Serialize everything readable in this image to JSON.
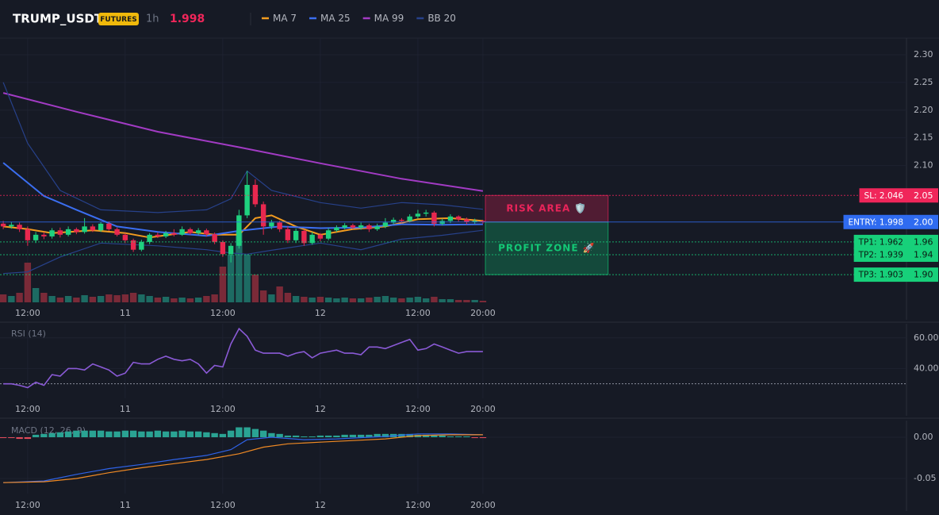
{
  "header": {
    "symbol": "TRUMP_USDT",
    "market": "FUTURES",
    "interval": "1h",
    "price": 1.998
  },
  "chart_data": [
    {
      "type": "candlestick",
      "x": [
        9,
        10,
        11,
        12,
        13,
        14,
        15,
        16,
        17,
        18,
        19,
        20,
        21,
        22,
        23,
        24,
        25,
        26,
        27,
        28,
        29,
        30,
        31,
        32,
        33,
        34,
        35,
        36,
        37,
        38,
        39,
        40,
        41,
        42,
        43,
        44,
        45,
        46,
        47,
        48,
        49,
        50,
        51,
        52,
        53,
        54,
        55,
        56,
        57,
        58,
        59,
        60,
        61,
        62,
        63,
        64,
        65,
        66,
        67,
        68
      ],
      "open": [
        1.995,
        1.99,
        1.993,
        1.985,
        1.965,
        1.975,
        1.972,
        1.983,
        1.975,
        1.985,
        1.98,
        1.99,
        1.983,
        1.995,
        1.985,
        1.975,
        1.965,
        1.948,
        1.962,
        1.975,
        1.972,
        1.978,
        1.975,
        1.985,
        1.978,
        1.983,
        1.976,
        1.962,
        1.94,
        1.955,
        2.01,
        2.065,
        2.03,
        1.99,
        1.997,
        1.985,
        1.965,
        1.982,
        1.96,
        1.975,
        1.968,
        1.983,
        1.988,
        1.992,
        1.988,
        1.992,
        1.985,
        1.99,
        1.997,
        2.002,
        2.0,
        2.008,
        2.013,
        2.015,
        1.995,
        2.0,
        2.008,
        2.003,
        1.998,
        2.0
      ],
      "high": [
        2.0,
        1.998,
        1.997,
        1.99,
        1.98,
        1.98,
        1.987,
        1.988,
        1.99,
        1.988,
        2.005,
        1.994,
        1.998,
        1.999,
        1.988,
        1.978,
        1.968,
        1.966,
        1.978,
        1.979,
        1.982,
        1.985,
        1.99,
        1.988,
        1.987,
        1.986,
        1.979,
        1.965,
        1.96,
        2.02,
        2.09,
        2.075,
        2.035,
        2.002,
        2.0,
        1.99,
        1.986,
        1.985,
        1.98,
        1.978,
        1.987,
        1.992,
        1.996,
        1.995,
        1.997,
        1.995,
        1.995,
        2.005,
        2.006,
        2.005,
        2.012,
        2.02,
        2.02,
        2.018,
        2.004,
        2.012,
        2.01,
        2.006,
        2.004,
        2.002
      ],
      "low": [
        1.985,
        1.986,
        1.98,
        1.955,
        1.96,
        1.967,
        1.968,
        1.97,
        1.972,
        1.976,
        1.977,
        1.98,
        1.98,
        1.982,
        1.972,
        1.96,
        1.944,
        1.945,
        1.958,
        1.969,
        1.969,
        1.972,
        1.973,
        1.975,
        1.975,
        1.972,
        1.958,
        1.935,
        1.925,
        1.95,
        2.005,
        2.025,
        1.975,
        1.985,
        1.98,
        1.96,
        1.96,
        1.955,
        1.957,
        1.963,
        1.965,
        1.98,
        1.985,
        1.985,
        1.984,
        1.98,
        1.982,
        1.987,
        1.994,
        1.996,
        1.997,
        2.004,
        2.008,
        1.99,
        1.992,
        1.996,
        1.999,
        1.994,
        1.995,
        1.995
      ],
      "close": [
        1.99,
        1.993,
        1.985,
        1.965,
        1.975,
        1.972,
        1.983,
        1.975,
        1.985,
        1.98,
        1.99,
        1.983,
        1.995,
        1.985,
        1.975,
        1.965,
        1.948,
        1.962,
        1.975,
        1.972,
        1.978,
        1.975,
        1.985,
        1.978,
        1.983,
        1.976,
        1.962,
        1.94,
        1.955,
        2.01,
        2.065,
        2.03,
        1.99,
        1.997,
        1.985,
        1.965,
        1.982,
        1.96,
        1.975,
        1.968,
        1.983,
        1.988,
        1.992,
        1.988,
        1.992,
        1.985,
        1.99,
        1.997,
        2.002,
        2.0,
        2.008,
        2.013,
        2.015,
        1.995,
        2.0,
        2.008,
        2.003,
        1.998,
        2.0,
        1.998
      ],
      "volume": [
        10,
        8,
        12,
        50,
        18,
        12,
        8,
        6,
        8,
        6,
        9,
        7,
        8,
        10,
        9,
        10,
        12,
        10,
        8,
        6,
        7,
        5,
        6,
        5,
        6,
        8,
        10,
        45,
        60,
        90,
        60,
        35,
        15,
        10,
        20,
        12,
        8,
        7,
        6,
        7,
        6,
        5,
        6,
        5,
        5,
        6,
        7,
        8,
        6,
        5,
        6,
        7,
        5,
        7,
        4,
        4,
        3,
        3,
        3,
        2
      ],
      "volume_lim": [
        0,
        100
      ],
      "up_color": "#1fd17f",
      "down_color": "#e8284f",
      "volume_up_color": "#1d6b63",
      "volume_down_color": "#7a2a38",
      "series": [
        {
          "name": "MA 7",
          "color": "#f39c1f",
          "x": [
            9,
            12,
            15,
            20,
            24,
            27,
            32,
            35,
            38,
            40,
            42,
            45,
            48,
            52,
            56,
            60,
            64,
            68
          ],
          "values": [
            1.99,
            1.985,
            1.978,
            1.983,
            1.978,
            1.97,
            1.98,
            1.975,
            1.975,
            2.005,
            2.01,
            1.99,
            1.975,
            1.985,
            1.99,
            2.003,
            2.005,
            2.0
          ]
        },
        {
          "name": "MA 25",
          "color": "#3b6ef0",
          "x": [
            9,
            14,
            18,
            23,
            28,
            34,
            38,
            43,
            48,
            53,
            58,
            63,
            68
          ],
          "values": [
            2.105,
            2.045,
            2.02,
            1.99,
            1.98,
            1.973,
            1.982,
            1.99,
            1.987,
            1.988,
            1.994,
            1.993,
            1.994
          ]
        },
        {
          "name": "MA 99",
          "color": "#a23bc4",
          "x": [
            9,
            18,
            28,
            38,
            48,
            58,
            68
          ],
          "values": [
            2.231,
            2.197,
            2.161,
            2.133,
            2.104,
            2.076,
            2.054
          ]
        },
        {
          "name": "BB 20",
          "color": "#27418a",
          "x": [
            9,
            12,
            16,
            21,
            28,
            34,
            37,
            39,
            42,
            48,
            53,
            58,
            63,
            68
          ],
          "upper": [
            2.25,
            2.14,
            2.055,
            2.02,
            2.015,
            2.02,
            2.04,
            2.09,
            2.055,
            2.033,
            2.023,
            2.033,
            2.029,
            2.021
          ],
          "lower": [
            1.905,
            1.908,
            1.935,
            1.96,
            1.955,
            1.948,
            1.942,
            1.94,
            1.947,
            1.96,
            1.948,
            1.967,
            1.974,
            1.983
          ]
        }
      ],
      "levels": [
        {
          "label": "SL: 2.046",
          "value": 2.046,
          "axis_label": "2.05",
          "color": "#f0265a",
          "text_color": "#ffffff",
          "style": "dotted"
        },
        {
          "label": "ENTRY: 1.998",
          "value": 1.998,
          "axis_label": "2.00",
          "color": "#2f6bf0",
          "text_color": "#ffffff",
          "style": "solid"
        },
        {
          "label": "TP1: 1.962",
          "value": 1.962,
          "axis_label": "1.96",
          "color": "#17d07a",
          "text_color": "#0b1a12",
          "style": "dotted"
        },
        {
          "label": "TP2: 1.939",
          "value": 1.939,
          "axis_label": "1.94",
          "color": "#17d07a",
          "text_color": "#0b1a12",
          "style": "dotted"
        },
        {
          "label": "TP3: 1.903",
          "value": 1.903,
          "axis_label": "1.90",
          "color": "#17d07a",
          "text_color": "#0b1a12",
          "style": "dotted"
        }
      ],
      "zones": [
        {
          "label": "RISK AREA 🛡️",
          "from": 2.046,
          "to": 1.998,
          "x_range": [
            68.3,
            83.4
          ],
          "color": "#e8245a"
        },
        {
          "label": "PROFIT ZONE 🚀",
          "from": 1.998,
          "to": 1.903,
          "x_range": [
            68.3,
            83.4
          ],
          "color": "#13c775"
        }
      ],
      "xlim": [
        8.6,
        120.1
      ],
      "ylim": [
        1.853,
        2.33
      ],
      "yticks": [
        {
          "value": 2.1,
          "label": "2.10"
        },
        {
          "value": 2.15,
          "label": "2.15"
        },
        {
          "value": 2.2,
          "label": "2.20"
        },
        {
          "value": 2.25,
          "label": "2.25"
        },
        {
          "value": 2.3,
          "label": "2.30"
        }
      ],
      "xticks": [
        {
          "value": 12,
          "label": "12:00"
        },
        {
          "value": 24,
          "label": "11"
        },
        {
          "value": 36,
          "label": "12:00"
        },
        {
          "value": 48,
          "label": "12"
        },
        {
          "value": 60,
          "label": "12:00"
        },
        {
          "value": 68,
          "label": "20:00"
        }
      ],
      "grid": true
    },
    {
      "type": "line",
      "title": "RSI (14)",
      "x": [
        9,
        10,
        11,
        12,
        13,
        14,
        15,
        16,
        17,
        18,
        19,
        20,
        21,
        22,
        23,
        24,
        25,
        26,
        27,
        28,
        29,
        30,
        31,
        32,
        33,
        34,
        35,
        36,
        37,
        38,
        39,
        40,
        41,
        42,
        43,
        44,
        45,
        46,
        47,
        48,
        49,
        50,
        51,
        52,
        53,
        54,
        55,
        56,
        57,
        58,
        59,
        60,
        61,
        62,
        63,
        64,
        65,
        66,
        67,
        68
      ],
      "series": [
        {
          "color": "#8a5ad6",
          "values": [
            30,
            30,
            29,
            27.5,
            31,
            29,
            36,
            35,
            40,
            40,
            39,
            43,
            41,
            39,
            35,
            37,
            44,
            43,
            43,
            46,
            48,
            46,
            45,
            46,
            43,
            37,
            42,
            41,
            56,
            66,
            61,
            52,
            50,
            50,
            50,
            48,
            50,
            51,
            47,
            50,
            51,
            52,
            50,
            50,
            49,
            54,
            54,
            53,
            55,
            57,
            59,
            52,
            53,
            56,
            54,
            52,
            50,
            51,
            51,
            51
          ]
        }
      ],
      "reference_line": 30,
      "xlim": [
        8.6,
        120.1
      ],
      "ylim": [
        20.5,
        69.2
      ],
      "yticks": [
        {
          "value": 40,
          "label": "40.00"
        },
        {
          "value": 60,
          "label": "60.00"
        }
      ],
      "xticks": [
        {
          "value": 12,
          "label": "12:00"
        },
        {
          "value": 24,
          "label": "11"
        },
        {
          "value": 36,
          "label": "12:00"
        },
        {
          "value": 48,
          "label": "12"
        },
        {
          "value": 60,
          "label": "12:00"
        },
        {
          "value": 68,
          "label": "20:00"
        }
      ],
      "grid": true
    },
    {
      "type": "macd",
      "title": "MACD (12, 26, 9)",
      "x": [
        9,
        10,
        11,
        12,
        13,
        14,
        15,
        16,
        17,
        18,
        19,
        20,
        21,
        22,
        23,
        24,
        25,
        26,
        27,
        28,
        29,
        30,
        31,
        32,
        33,
        34,
        35,
        36,
        37,
        38,
        39,
        40,
        41,
        42,
        43,
        44,
        45,
        46,
        47,
        48,
        49,
        50,
        51,
        52,
        53,
        54,
        55,
        56,
        57,
        58,
        59,
        60,
        61,
        62,
        63,
        64,
        65,
        66,
        67,
        68
      ],
      "histogram": {
        "up_color": "#2aa393",
        "down_color": "#e04a5a",
        "values": [
          -0.001,
          -0.001,
          -0.002,
          -0.002,
          0.003,
          0.004,
          0.005,
          0.006,
          0.007,
          0.008,
          0.008,
          0.008,
          0.008,
          0.007,
          0.007,
          0.008,
          0.008,
          0.007,
          0.007,
          0.008,
          0.007,
          0.007,
          0.008,
          0.007,
          0.007,
          0.006,
          0.005,
          0.004,
          0.008,
          0.012,
          0.012,
          0.01,
          0.008,
          0.005,
          0.004,
          0.002,
          0.002,
          0.001,
          0.001,
          0.002,
          0.002,
          0.002,
          0.003,
          0.003,
          0.003,
          0.003,
          0.004,
          0.004,
          0.004,
          0.004,
          0.004,
          0.003,
          0.003,
          0.002,
          0.002,
          0.001,
          0.001,
          0.001,
          -0.001,
          -0.001
        ]
      },
      "series": [
        {
          "color": "#2f63e8",
          "x": [
            9,
            14,
            18,
            22,
            26,
            30,
            34,
            37,
            39,
            42,
            46,
            50,
            56,
            60,
            64,
            68
          ],
          "values": [
            -0.055,
            -0.053,
            -0.045,
            -0.038,
            -0.033,
            -0.027,
            -0.022,
            -0.015,
            -0.003,
            0.0,
            -0.003,
            -0.002,
            0.001,
            0.004,
            0.004,
            0.003
          ]
        },
        {
          "color": "#f08a24",
          "x": [
            9,
            14,
            18,
            22,
            26,
            30,
            34,
            38,
            41,
            44,
            48,
            52,
            56,
            60,
            64,
            68
          ],
          "values": [
            -0.055,
            -0.054,
            -0.05,
            -0.043,
            -0.037,
            -0.032,
            -0.027,
            -0.02,
            -0.012,
            -0.008,
            -0.006,
            -0.004,
            -0.002,
            0.002,
            0.003,
            0.003
          ]
        }
      ],
      "xlim": [
        8.6,
        120.1
      ],
      "ylim": [
        -0.0683,
        0.0202
      ],
      "yticks": [
        {
          "value": -0.05,
          "label": "-0.05"
        },
        {
          "value": 0,
          "label": "0.00"
        }
      ],
      "xticks": [
        {
          "value": 12,
          "label": "12:00"
        },
        {
          "value": 24,
          "label": "11"
        },
        {
          "value": 36,
          "label": "12:00"
        },
        {
          "value": 48,
          "label": "12"
        },
        {
          "value": 60,
          "label": "12:00"
        },
        {
          "value": 68,
          "label": "20:00"
        }
      ],
      "grid": true
    }
  ]
}
